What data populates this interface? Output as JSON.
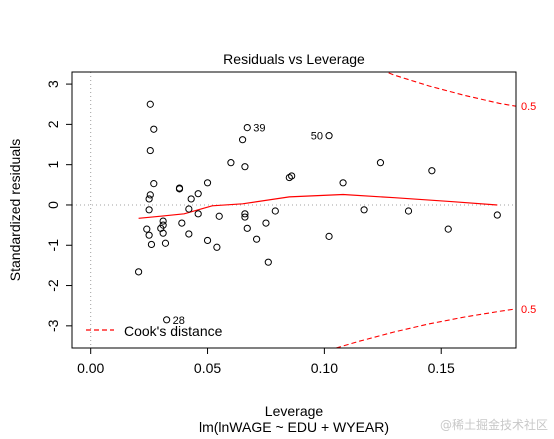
{
  "chart_data": {
    "type": "scatter",
    "title": "Residuals vs Leverage",
    "xlabel": "Leverage",
    "xlabel2": "lm(lnWAGE ~ EDU + WYEAR)",
    "ylabel": "Standardized residuals",
    "xlim": [
      -0.008,
      0.182
    ],
    "ylim": [
      -3.55,
      3.3
    ],
    "x_ticks": [
      0.0,
      0.05,
      0.1,
      0.15
    ],
    "x_tick_labels": [
      "0.00",
      "0.05",
      "0.10",
      "0.15"
    ],
    "y_ticks": [
      -3,
      -2,
      -1,
      0,
      1,
      2,
      3
    ],
    "y_tick_labels": [
      "-3",
      "-2",
      "-1",
      "0",
      "1",
      "2",
      "3"
    ],
    "grid": false,
    "reference_lines": {
      "x": 0,
      "y": 0
    },
    "points": [
      {
        "x": 0.0205,
        "y": -1.66
      },
      {
        "x": 0.024,
        "y": -0.6
      },
      {
        "x": 0.025,
        "y": -0.12
      },
      {
        "x": 0.025,
        "y": 0.15
      },
      {
        "x": 0.025,
        "y": -0.75
      },
      {
        "x": 0.0255,
        "y": 0.25
      },
      {
        "x": 0.0255,
        "y": 2.5
      },
      {
        "x": 0.0255,
        "y": 1.35
      },
      {
        "x": 0.026,
        "y": -0.98
      },
      {
        "x": 0.027,
        "y": 1.88
      },
      {
        "x": 0.027,
        "y": 0.53
      },
      {
        "x": 0.03,
        "y": -0.58
      },
      {
        "x": 0.031,
        "y": -0.4
      },
      {
        "x": 0.031,
        "y": -0.7
      },
      {
        "x": 0.031,
        "y": -0.5
      },
      {
        "x": 0.032,
        "y": -0.95
      },
      {
        "x": 0.0325,
        "y": -2.85
      },
      {
        "x": 0.038,
        "y": 0.4
      },
      {
        "x": 0.038,
        "y": 0.42
      },
      {
        "x": 0.039,
        "y": -0.45
      },
      {
        "x": 0.042,
        "y": -0.1
      },
      {
        "x": 0.042,
        "y": -0.72
      },
      {
        "x": 0.043,
        "y": 0.15
      },
      {
        "x": 0.046,
        "y": 0.28
      },
      {
        "x": 0.046,
        "y": -0.22
      },
      {
        "x": 0.05,
        "y": 0.55
      },
      {
        "x": 0.05,
        "y": -0.88
      },
      {
        "x": 0.054,
        "y": -1.05
      },
      {
        "x": 0.055,
        "y": -0.28
      },
      {
        "x": 0.06,
        "y": 1.05
      },
      {
        "x": 0.065,
        "y": 1.62
      },
      {
        "x": 0.066,
        "y": 0.95
      },
      {
        "x": 0.066,
        "y": -0.22
      },
      {
        "x": 0.066,
        "y": -0.3
      },
      {
        "x": 0.067,
        "y": 1.92
      },
      {
        "x": 0.067,
        "y": -0.58
      },
      {
        "x": 0.071,
        "y": -0.85
      },
      {
        "x": 0.075,
        "y": -0.45
      },
      {
        "x": 0.076,
        "y": -1.42
      },
      {
        "x": 0.079,
        "y": -0.15
      },
      {
        "x": 0.085,
        "y": 0.68
      },
      {
        "x": 0.086,
        "y": 0.72
      },
      {
        "x": 0.102,
        "y": 1.72
      },
      {
        "x": 0.102,
        "y": -0.78
      },
      {
        "x": 0.108,
        "y": 0.55
      },
      {
        "x": 0.117,
        "y": -0.12
      },
      {
        "x": 0.124,
        "y": 1.05
      },
      {
        "x": 0.136,
        "y": -0.15
      },
      {
        "x": 0.146,
        "y": 0.85
      },
      {
        "x": 0.153,
        "y": -0.6
      },
      {
        "x": 0.174,
        "y": -0.25
      }
    ],
    "point_labels": [
      {
        "label": "39",
        "x": 0.067,
        "y": 1.92,
        "side": "right"
      },
      {
        "label": "50",
        "x": 0.102,
        "y": 1.72,
        "side": "left"
      },
      {
        "label": "28",
        "x": 0.0325,
        "y": -2.85,
        "side": "right"
      }
    ],
    "smooth_line": {
      "color": "#ff0000",
      "x": [
        0.0205,
        0.03,
        0.04,
        0.046,
        0.052,
        0.065,
        0.085,
        0.108,
        0.13,
        0.155,
        0.174
      ],
      "y": [
        -0.33,
        -0.28,
        -0.22,
        -0.12,
        -0.02,
        0.03,
        0.2,
        0.26,
        0.18,
        0.08,
        0.0
      ]
    },
    "cooks_distance": {
      "color": "#ff0000",
      "level_label": "0.5",
      "upper": {
        "x": [
          0.118,
          0.13,
          0.145,
          0.16,
          0.175,
          0.182
        ],
        "y": [
          3.5,
          3.22,
          2.95,
          2.72,
          2.52,
          2.45
        ]
      },
      "lower": {
        "x": [
          0.105,
          0.115,
          0.13,
          0.145,
          0.16,
          0.175,
          0.182
        ],
        "y": [
          -3.55,
          -3.38,
          -3.15,
          -2.95,
          -2.78,
          -2.64,
          -2.58
        ]
      }
    },
    "legend": {
      "position": "bottom-left",
      "label": "Cook's distance",
      "color": "#ff0000"
    }
  },
  "watermark": "@稀土掘金技术社区"
}
